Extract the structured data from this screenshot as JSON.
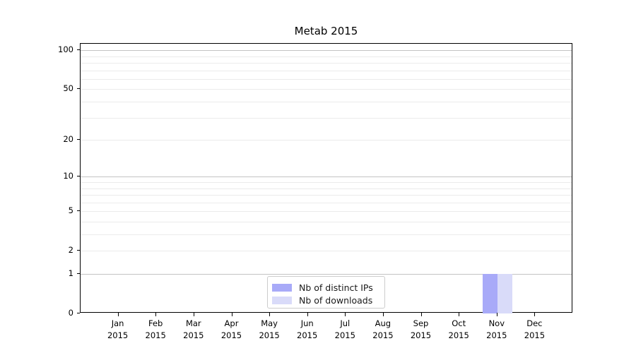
{
  "title": "Metab 2015",
  "chart_data": {
    "type": "bar",
    "title": "Metab 2015",
    "xlabel": "",
    "ylabel": "",
    "categories": [
      "Jan",
      "Feb",
      "Mar",
      "Apr",
      "May",
      "Jun",
      "Jul",
      "Aug",
      "Sep",
      "Oct",
      "Nov",
      "Dec"
    ],
    "year_label": "2015",
    "series": [
      {
        "name": "Nb of distinct IPs",
        "color": "#a8aaf8",
        "values": [
          0,
          0,
          0,
          0,
          0,
          0,
          0,
          0,
          0,
          0,
          1,
          0
        ]
      },
      {
        "name": "Nb of downloads",
        "color": "#d9dbf9",
        "values": [
          0,
          0,
          0,
          0,
          0,
          0,
          0,
          0,
          0,
          0,
          1,
          0
        ]
      }
    ],
    "yaxis": {
      "scale": "log10(1+v)",
      "tick_values": [
        0,
        1,
        2,
        5,
        10,
        20,
        50,
        100
      ],
      "tick_labels": [
        "0",
        "1",
        "2",
        "5",
        "10",
        "20",
        "50",
        "100"
      ],
      "major_gridlines": [
        1,
        10,
        100
      ],
      "minor_gridlines": [
        2,
        3,
        4,
        5,
        6,
        7,
        8,
        9,
        20,
        30,
        40,
        50,
        60,
        70,
        80,
        90
      ],
      "ymax": 112
    },
    "legend": {
      "position": "lower center-right",
      "entries": [
        "Nb of distinct IPs",
        "Nb of downloads"
      ]
    },
    "grid": true
  },
  "colors": {
    "spine": "#000000",
    "major_grid": "#c3c3c3",
    "minor_grid": "#ebebeb",
    "background": "#ffffff"
  }
}
